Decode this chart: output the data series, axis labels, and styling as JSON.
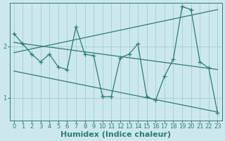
{
  "xlabel": "Humidex (Indice chaleur)",
  "ylabel": "",
  "background_color": "#cce8ee",
  "grid_color": "#aacfd8",
  "line_color": "#2e7d6e",
  "xlim": [
    -0.5,
    23.5
  ],
  "ylim": [
    0.55,
    2.85
  ],
  "yticks": [
    1,
    2
  ],
  "xticks": [
    0,
    1,
    2,
    3,
    4,
    5,
    6,
    7,
    8,
    9,
    10,
    11,
    12,
    13,
    14,
    15,
    16,
    17,
    18,
    19,
    20,
    21,
    22,
    23
  ],
  "series1_x": [
    0,
    1,
    2,
    3,
    4,
    5,
    6,
    7,
    8,
    9,
    10,
    11,
    12,
    13,
    14,
    15,
    16,
    17,
    18,
    19,
    20,
    21,
    22,
    23
  ],
  "series1_y": [
    2.25,
    2.05,
    1.85,
    1.7,
    1.85,
    1.6,
    1.55,
    2.38,
    1.85,
    1.82,
    1.02,
    1.02,
    1.78,
    1.85,
    2.05,
    1.02,
    0.95,
    1.42,
    1.75,
    2.78,
    2.72,
    1.7,
    1.58,
    0.7
  ],
  "series2_x": [
    0,
    23
  ],
  "series2_y": [
    1.88,
    2.72
  ],
  "series3_x": [
    0,
    23
  ],
  "series3_y": [
    2.08,
    1.55
  ],
  "series4_x": [
    0,
    23
  ],
  "series4_y": [
    1.52,
    0.72
  ],
  "font_color": "#2e7d6e",
  "tick_fontsize": 6,
  "label_fontsize": 8
}
